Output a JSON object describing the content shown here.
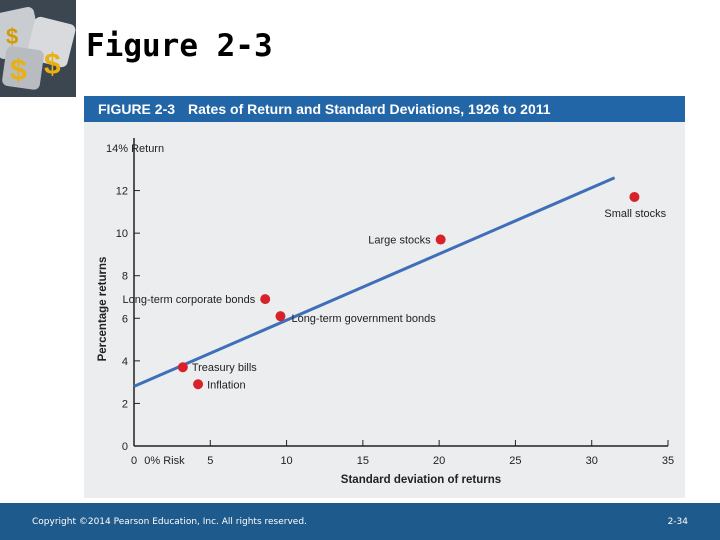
{
  "slide": {
    "title": "Figure 2-3",
    "copyright": "Copyright ©2014 Pearson Education, Inc. All rights reserved.",
    "page_number": "2-34"
  },
  "figure": {
    "label": "FIGURE 2-3",
    "caption": "Rates of Return and Standard Deviations, 1926 to 2011"
  },
  "colors": {
    "header": "#2266a8",
    "footer": "#1f5a8c",
    "panel": "#ecedee",
    "line": "#3f6fb8",
    "point": "#d8222a"
  },
  "chart_data": {
    "type": "scatter",
    "title": "",
    "xlabel": "Standard deviation of returns",
    "ylabel": "Percentage returns",
    "xlim": [
      0,
      35
    ],
    "ylim": [
      0,
      14
    ],
    "x_ticks": [
      "0",
      "0% Risk",
      "5",
      "10",
      "15",
      "20",
      "25",
      "30",
      "35"
    ],
    "y_ticks": [
      "0",
      "2",
      "4",
      "6",
      "8",
      "10",
      "12",
      "14% Return"
    ],
    "grid": false,
    "points": [
      {
        "label": "Small stocks",
        "x": 32.8,
        "y": 11.7
      },
      {
        "label": "Large stocks",
        "x": 20.1,
        "y": 9.7
      },
      {
        "label": "Long-term corporate bonds",
        "x": 8.6,
        "y": 6.9
      },
      {
        "label": "Long-term government bonds",
        "x": 9.6,
        "y": 6.1
      },
      {
        "label": "Treasury bills",
        "x": 3.2,
        "y": 3.7
      },
      {
        "label": "Inflation",
        "x": 4.2,
        "y": 2.9
      }
    ],
    "trend_line": {
      "x": [
        0,
        31.5
      ],
      "y": [
        2.8,
        12.6
      ]
    }
  }
}
